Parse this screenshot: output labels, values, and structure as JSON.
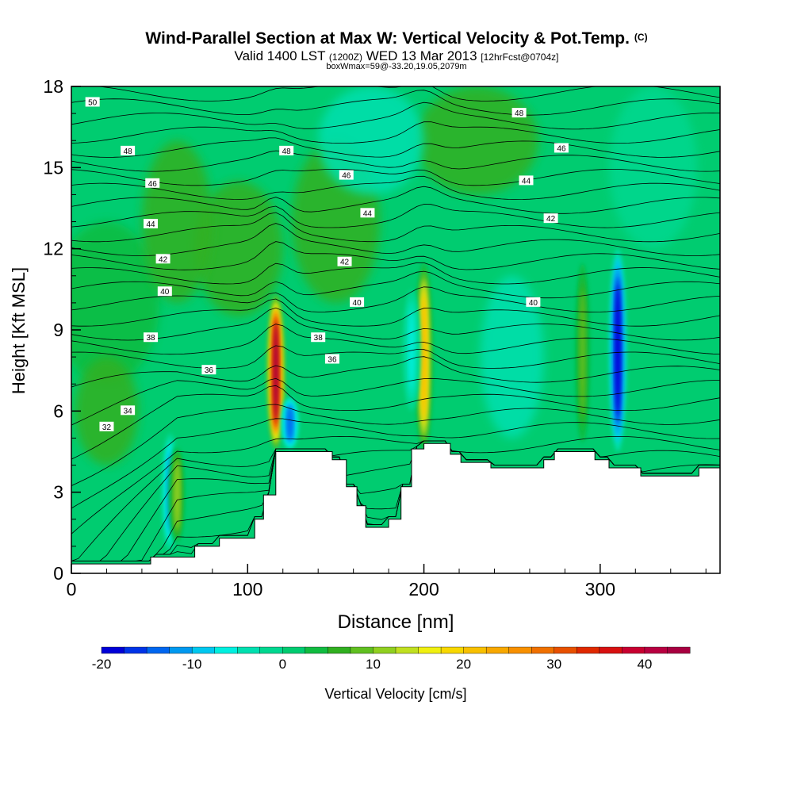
{
  "header": {
    "title": "Wind-Parallel Section at Max W: Vertical Velocity & Pot.Temp.",
    "copyright": "(C)",
    "valid_prefix": "Valid 1400 LST",
    "valid_utc": "(1200Z)",
    "valid_date": "WED 13 Mar 2013",
    "forecast": "[12hrFcst@0704z]",
    "box_info": "boxWmax=59@-33.20,19.05,2079m"
  },
  "chart_data": {
    "type": "heatmap",
    "xlabel": "Distance [nm]",
    "ylabel": "Height [Kft MSL]",
    "xlim": [
      0,
      368
    ],
    "ylim": [
      0,
      18
    ],
    "x_ticks": [
      "0",
      "100",
      "200",
      "300"
    ],
    "x_tick_values": [
      0,
      100,
      200,
      300
    ],
    "y_ticks": [
      "0",
      "3",
      "6",
      "9",
      "12",
      "15",
      "18"
    ],
    "y_tick_values": [
      0,
      3,
      6,
      9,
      12,
      15,
      18
    ],
    "colorbar": {
      "label": "Vertical Velocity [cm/s]",
      "min": -20,
      "max": 45,
      "step": 2.5,
      "tick_labels": [
        "-20",
        "-10",
        "0",
        "10",
        "20",
        "30",
        "40"
      ],
      "tick_values": [
        -20,
        -10,
        0,
        10,
        20,
        30,
        40
      ],
      "colors": [
        "#0000d8",
        "#0033e8",
        "#0066f0",
        "#0099f0",
        "#00c8f0",
        "#00f0e0",
        "#00e0b0",
        "#00d890",
        "#00cc70",
        "#10bc40",
        "#30b020",
        "#60c020",
        "#90d020",
        "#c0e020",
        "#f0f010",
        "#f8d800",
        "#f8c000",
        "#f8a800",
        "#f89000",
        "#f07000",
        "#e85000",
        "#e02800",
        "#d81010",
        "#c80030",
        "#b80040",
        "#a80040"
      ]
    },
    "isentropes": {
      "variable": "Potential Temperature",
      "labels": [
        "50",
        "48",
        "48",
        "48",
        "46",
        "46",
        "46",
        "44",
        "44",
        "44",
        "42",
        "42",
        "42",
        "40",
        "40",
        "40",
        "38",
        "38",
        "36",
        "36",
        "34",
        "32"
      ]
    },
    "w_features": [
      {
        "x": 56,
        "y_range": [
          0.8,
          5.2
        ],
        "w": -12
      },
      {
        "x": 60,
        "y_range": [
          1.0,
          4.8
        ],
        "w": 10
      },
      {
        "x": 116,
        "y_range": [
          4.6,
          10.3
        ],
        "w": 43
      },
      {
        "x": 124,
        "y_range": [
          4.6,
          6.5
        ],
        "w": -14
      },
      {
        "x": 200,
        "y_range": [
          4.5,
          11.5
        ],
        "w": 22
      },
      {
        "x": 193,
        "y_range": [
          6.0,
          10.5
        ],
        "w": -6
      },
      {
        "x": 310,
        "y_range": [
          4.5,
          12.0
        ],
        "w": -19
      },
      {
        "x": 290,
        "y_range": [
          4.5,
          11.8
        ],
        "w": 8
      }
    ],
    "terrain_kft": [
      [
        0,
        0.35
      ],
      [
        45,
        0.35
      ],
      [
        45,
        0.6
      ],
      [
        70,
        0.6
      ],
      [
        70,
        1.0
      ],
      [
        84,
        1.0
      ],
      [
        84,
        1.3
      ],
      [
        104,
        1.3
      ],
      [
        104,
        2.0
      ],
      [
        109,
        2.0
      ],
      [
        109,
        2.9
      ],
      [
        116,
        2.9
      ],
      [
        116,
        4.5
      ],
      [
        134,
        4.5
      ],
      [
        134,
        4.5
      ],
      [
        148,
        4.5
      ],
      [
        148,
        4.2
      ],
      [
        156,
        4.2
      ],
      [
        156,
        3.2
      ],
      [
        162,
        3.2
      ],
      [
        162,
        2.5
      ],
      [
        167,
        2.5
      ],
      [
        167,
        1.7
      ],
      [
        180,
        1.7
      ],
      [
        180,
        2.0
      ],
      [
        187,
        2.0
      ],
      [
        187,
        3.2
      ],
      [
        193,
        3.2
      ],
      [
        193,
        4.6
      ],
      [
        200,
        4.6
      ],
      [
        200,
        4.8
      ],
      [
        215,
        4.8
      ],
      [
        215,
        4.4
      ],
      [
        221,
        4.4
      ],
      [
        221,
        4.1
      ],
      [
        238,
        4.1
      ],
      [
        238,
        3.9
      ],
      [
        268,
        3.9
      ],
      [
        268,
        4.2
      ],
      [
        274,
        4.2
      ],
      [
        274,
        4.5
      ],
      [
        297,
        4.5
      ],
      [
        297,
        4.2
      ],
      [
        305,
        4.2
      ],
      [
        305,
        3.9
      ],
      [
        323,
        3.9
      ],
      [
        323,
        3.6
      ],
      [
        356,
        3.6
      ],
      [
        356,
        3.9
      ],
      [
        368,
        3.9
      ]
    ]
  }
}
